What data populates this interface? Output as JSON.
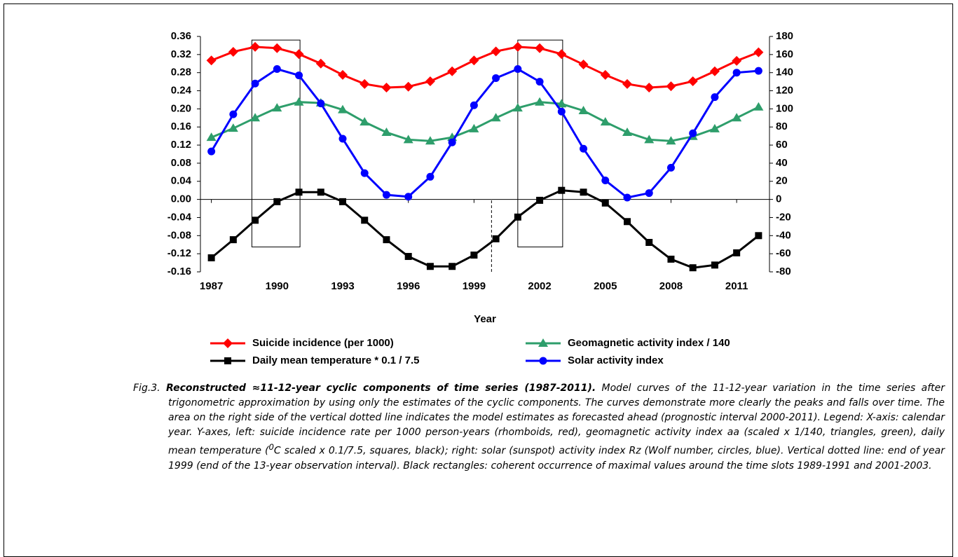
{
  "chart_data": {
    "type": "line",
    "x": [
      1987,
      1988,
      1989,
      1990,
      1991,
      1992,
      1993,
      1994,
      1995,
      1996,
      1997,
      1998,
      1999,
      2000,
      2001,
      2002,
      2003,
      2004,
      2005,
      2006,
      2007,
      2008,
      2009,
      2010,
      2011,
      2012
    ],
    "xlabel": "Year",
    "xlim": [
      1986.5,
      2012.5
    ],
    "xticks": [
      1987,
      1990,
      1993,
      1996,
      1999,
      2002,
      2005,
      2008,
      2011
    ],
    "ylim": [
      -0.16,
      0.36
    ],
    "yticks": [
      {
        "value": 0.36,
        "label": "0.36"
      },
      {
        "value": 0.32,
        "label": "0.32"
      },
      {
        "value": 0.28,
        "label": "0.28"
      },
      {
        "value": 0.24,
        "label": "0.24"
      },
      {
        "value": 0.2,
        "label": "0.20"
      },
      {
        "value": 0.16,
        "label": "0.16"
      },
      {
        "value": 0.12,
        "label": "0.12"
      },
      {
        "value": 0.08,
        "label": "0.08"
      },
      {
        "value": 0.04,
        "label": "0.04"
      },
      {
        "value": 0,
        "label": "0.00"
      },
      {
        "value": -0.04,
        "label": "-0.04"
      },
      {
        "value": -0.08,
        "label": "-0.08"
      },
      {
        "value": -0.12,
        "label": "-0.12"
      },
      {
        "value": -0.16,
        "label": "-0.16"
      }
    ],
    "y2lim": [
      -80,
      180
    ],
    "y2ticks": [
      180,
      160,
      140,
      120,
      100,
      80,
      60,
      40,
      20,
      0,
      -20,
      -40,
      -60,
      -80
    ],
    "series": [
      {
        "name": "Suicide incidence (per 1000)",
        "color": "#ff0000",
        "marker": "diamond",
        "values": [
          0.307,
          0.326,
          0.337,
          0.334,
          0.321,
          0.3,
          0.275,
          0.255,
          0.247,
          0.249,
          0.261,
          0.283,
          0.307,
          0.327,
          0.337,
          0.334,
          0.321,
          0.298,
          0.275,
          0.255,
          0.247,
          0.25,
          0.261,
          0.283,
          0.306,
          0.325
        ]
      },
      {
        "name": "Geomagnetic activity index / 140",
        "color": "#2e9e6b",
        "marker": "triangle",
        "values": [
          0.137,
          0.157,
          0.18,
          0.202,
          0.215,
          0.213,
          0.198,
          0.171,
          0.148,
          0.132,
          0.129,
          0.137,
          0.156,
          0.18,
          0.202,
          0.215,
          0.211,
          0.196,
          0.171,
          0.148,
          0.132,
          0.129,
          0.139,
          0.156,
          0.18,
          0.204
        ]
      },
      {
        "name": "Daily mean temperature * 0.1 / 7.5",
        "color": "#000000",
        "marker": "square",
        "values": [
          -0.129,
          -0.089,
          -0.046,
          -0.005,
          0.016,
          0.016,
          -0.005,
          -0.046,
          -0.089,
          -0.126,
          -0.148,
          -0.148,
          -0.123,
          -0.087,
          -0.039,
          -0.002,
          0.02,
          0.016,
          -0.008,
          -0.049,
          -0.095,
          -0.132,
          -0.151,
          -0.145,
          -0.118,
          -0.08
        ]
      },
      {
        "name": "Solar activity index",
        "color": "#0000ff",
        "marker": "circle",
        "axis": "y2",
        "values": [
          53,
          94,
          128,
          144,
          137,
          106,
          67,
          29,
          5,
          3,
          25,
          63,
          104,
          134,
          144,
          130,
          97,
          56,
          21,
          2,
          7,
          35,
          73,
          113,
          140,
          142
        ]
      }
    ],
    "boxes": [
      {
        "x": [
          1988.85,
          1991.05
        ],
        "y": [
          -0.105,
          0.352
        ]
      },
      {
        "x": [
          2001.0,
          2003.05
        ],
        "y": [
          -0.105,
          0.352
        ]
      }
    ],
    "vline": {
      "x": 1999.8,
      "y": [
        -0.16,
        0
      ]
    },
    "caption": {
      "label": "Fig.3.",
      "title": "Reconstructed ≈11-12-year cyclic components of time series (1987-2011).",
      "text": "Model curves of the 11-12-year variation in the time series after trigonometric approximation by using only the estimates of the cyclic components. The curves demonstrate more clearly the peaks and falls over time. The area on the right side of the vertical dotted line indicates the model estimates as forecasted ahead (prognostic interval 2000-2011). Legend: X-axis: calendar year. Y-axes, left: suicide incidence rate per 1000 person-years (rhomboids, red), geomagnetic activity index aa (scaled x 1/140, triangles, green), daily mean temperature (",
      "sup": "0",
      "text_after": "C scaled x 0.1/7.5, squares, black); right: solar (sunspot) activity index Rz (Wolf number, circles, blue). Vertical dotted line: end of year 1999 (end of the 13-year observation interval). Black rectangles: coherent occurrence of maximal values around the time slots 1989-1991 and 2001-2003."
    }
  }
}
